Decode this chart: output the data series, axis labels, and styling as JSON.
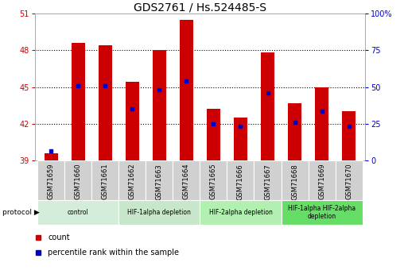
{
  "title": "GDS2761 / Hs.524485-S",
  "samples": [
    "GSM71659",
    "GSM71660",
    "GSM71661",
    "GSM71662",
    "GSM71663",
    "GSM71664",
    "GSM71665",
    "GSM71666",
    "GSM71667",
    "GSM71668",
    "GSM71669",
    "GSM71670"
  ],
  "bar_heights": [
    39.6,
    48.6,
    48.4,
    45.4,
    48.0,
    50.5,
    43.2,
    42.5,
    47.8,
    43.7,
    45.0,
    43.0
  ],
  "blue_dots": [
    39.8,
    45.1,
    45.1,
    43.2,
    44.8,
    45.5,
    42.0,
    41.8,
    44.5,
    42.1,
    43.0,
    41.8
  ],
  "bar_bottom": 39.0,
  "ylim_left": [
    39,
    51
  ],
  "ylim_right": [
    0,
    100
  ],
  "yticks_left": [
    39,
    42,
    45,
    48,
    51
  ],
  "yticks_right": [
    0,
    25,
    50,
    75,
    100
  ],
  "ytick_labels_right": [
    "0",
    "25",
    "50",
    "75",
    "100%"
  ],
  "bar_color": "#cc0000",
  "dot_color": "#0000cc",
  "protocol_groups": [
    {
      "label": "control",
      "start": 0,
      "end": 3,
      "color": "#d4edda"
    },
    {
      "label": "HIF-1alpha depletion",
      "start": 3,
      "end": 6,
      "color": "#c8e6c9"
    },
    {
      "label": "HIF-2alpha depletion",
      "start": 6,
      "end": 9,
      "color": "#b2f0b2"
    },
    {
      "label": "HIF-1alpha HIF-2alpha\ndepletion",
      "start": 9,
      "end": 12,
      "color": "#66dd66"
    }
  ],
  "legend_count_color": "#cc0000",
  "legend_dot_color": "#0000cc",
  "bar_width": 0.5,
  "left_tick_color": "#cc0000",
  "right_tick_color": "#0000cc",
  "title_fontsize": 10,
  "tick_fontsize": 7,
  "sample_box_color": "#d0d0d0",
  "spine_color": "#aaaaaa"
}
